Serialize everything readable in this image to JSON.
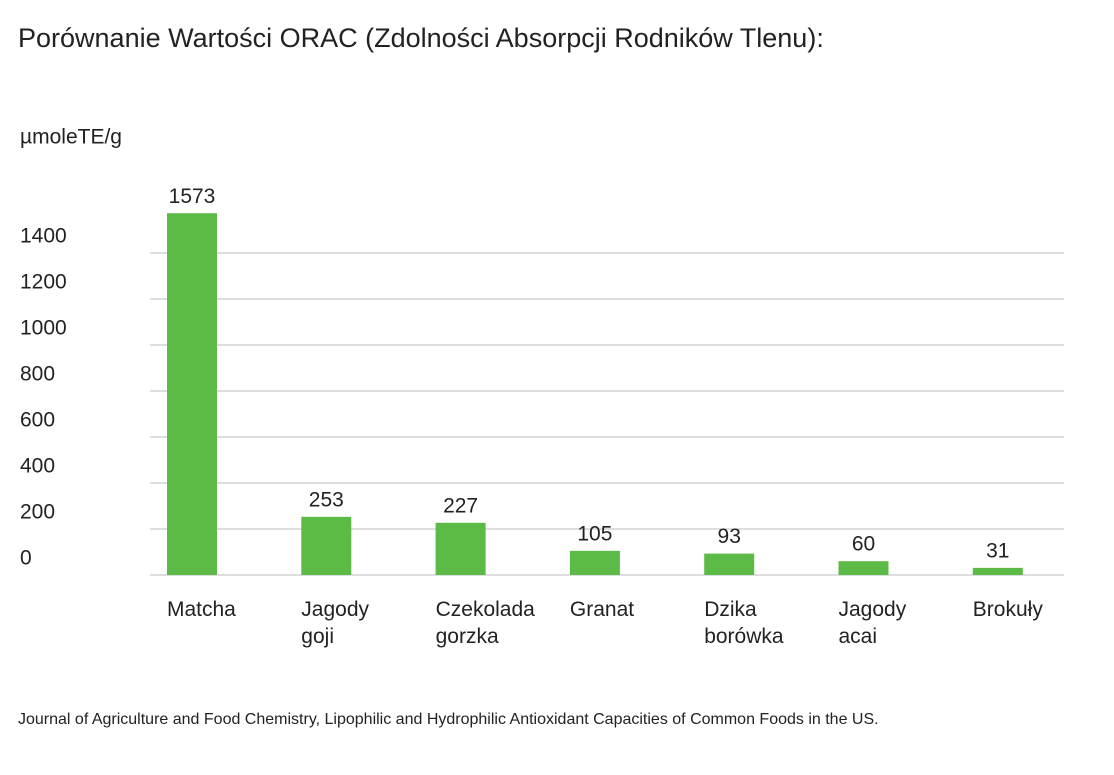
{
  "chart_data": {
    "type": "bar",
    "title": "Porównanie Wartości ORAC (Zdolności Absorpcji Rodników Tlenu):",
    "y_axis_label": "µmoleTE/g",
    "source": "Journal of Agriculture and Food Chemistry, Lipophilic and Hydrophilic Antioxidant Capacities of Common Foods in the US.",
    "categories": [
      "Matcha",
      "Jagody goji",
      "Czekolada gorzka",
      "Granat",
      "Dzika borówka",
      "Jagody acai",
      "Brokuły"
    ],
    "values": [
      1573,
      253,
      227,
      105,
      93,
      60,
      31
    ],
    "color": "#5cba47",
    "ylim": [
      0,
      1600
    ],
    "yticks": [
      0,
      200,
      400,
      600,
      800,
      1000,
      1200,
      1400
    ],
    "grid": true
  }
}
